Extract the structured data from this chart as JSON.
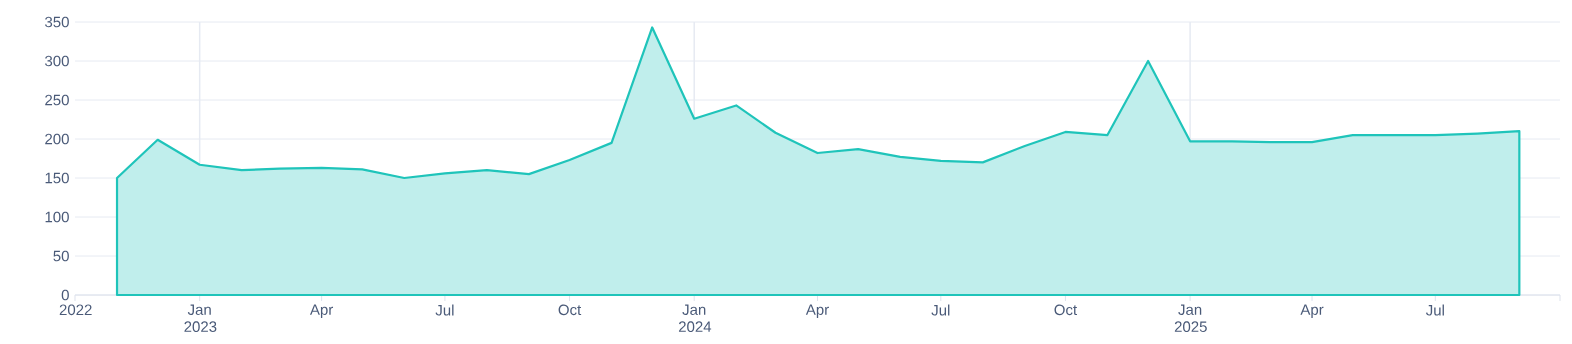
{
  "chart_data": {
    "type": "area",
    "color": "#1fc4ba",
    "x": [
      "2022-11",
      "2022-12",
      "2023-01",
      "2023-02",
      "2023-03",
      "2023-04",
      "2023-05",
      "2023-06",
      "2023-07",
      "2023-08",
      "2023-09",
      "2023-10",
      "2023-11",
      "2023-12",
      "2024-01",
      "2024-02",
      "2024-03",
      "2024-04",
      "2024-05",
      "2024-06",
      "2024-07",
      "2024-08",
      "2024-09",
      "2024-10",
      "2024-11",
      "2024-12",
      "2025-01",
      "2025-02",
      "2025-03",
      "2025-04",
      "2025-05",
      "2025-06",
      "2025-07",
      "2025-08",
      "2025-09"
    ],
    "values": [
      150,
      199,
      167,
      160,
      162,
      163,
      161,
      150,
      156,
      160,
      155,
      173,
      195,
      343,
      226,
      243,
      208,
      182,
      187,
      177,
      172,
      170,
      191,
      209,
      205,
      300,
      197,
      197,
      196,
      196,
      205,
      205,
      205,
      207,
      210
    ],
    "xlim": [
      "2022-10",
      "2025-10"
    ],
    "xticks": [
      {
        "value": "2022-10",
        "label": "2022"
      },
      {
        "value": "2023-01",
        "label": "Jan 2023"
      },
      {
        "value": "2023-04",
        "label": "Apr"
      },
      {
        "value": "2023-07",
        "label": "Jul"
      },
      {
        "value": "2023-10",
        "label": "Oct"
      },
      {
        "value": "2024-01",
        "label": "Jan 2024"
      },
      {
        "value": "2024-04",
        "label": "Apr"
      },
      {
        "value": "2024-07",
        "label": "Jul"
      },
      {
        "value": "2024-10",
        "label": "Oct"
      },
      {
        "value": "2025-01",
        "label": "Jan 2025"
      },
      {
        "value": "2025-04",
        "label": "Apr"
      },
      {
        "value": "2025-07",
        "label": "Jul"
      },
      {
        "value": "2025-10",
        "label": null
      }
    ],
    "ylim": [
      0,
      350
    ],
    "yticks": [
      0,
      50,
      100,
      150,
      200,
      250,
      300,
      350
    ],
    "grid": true
  }
}
